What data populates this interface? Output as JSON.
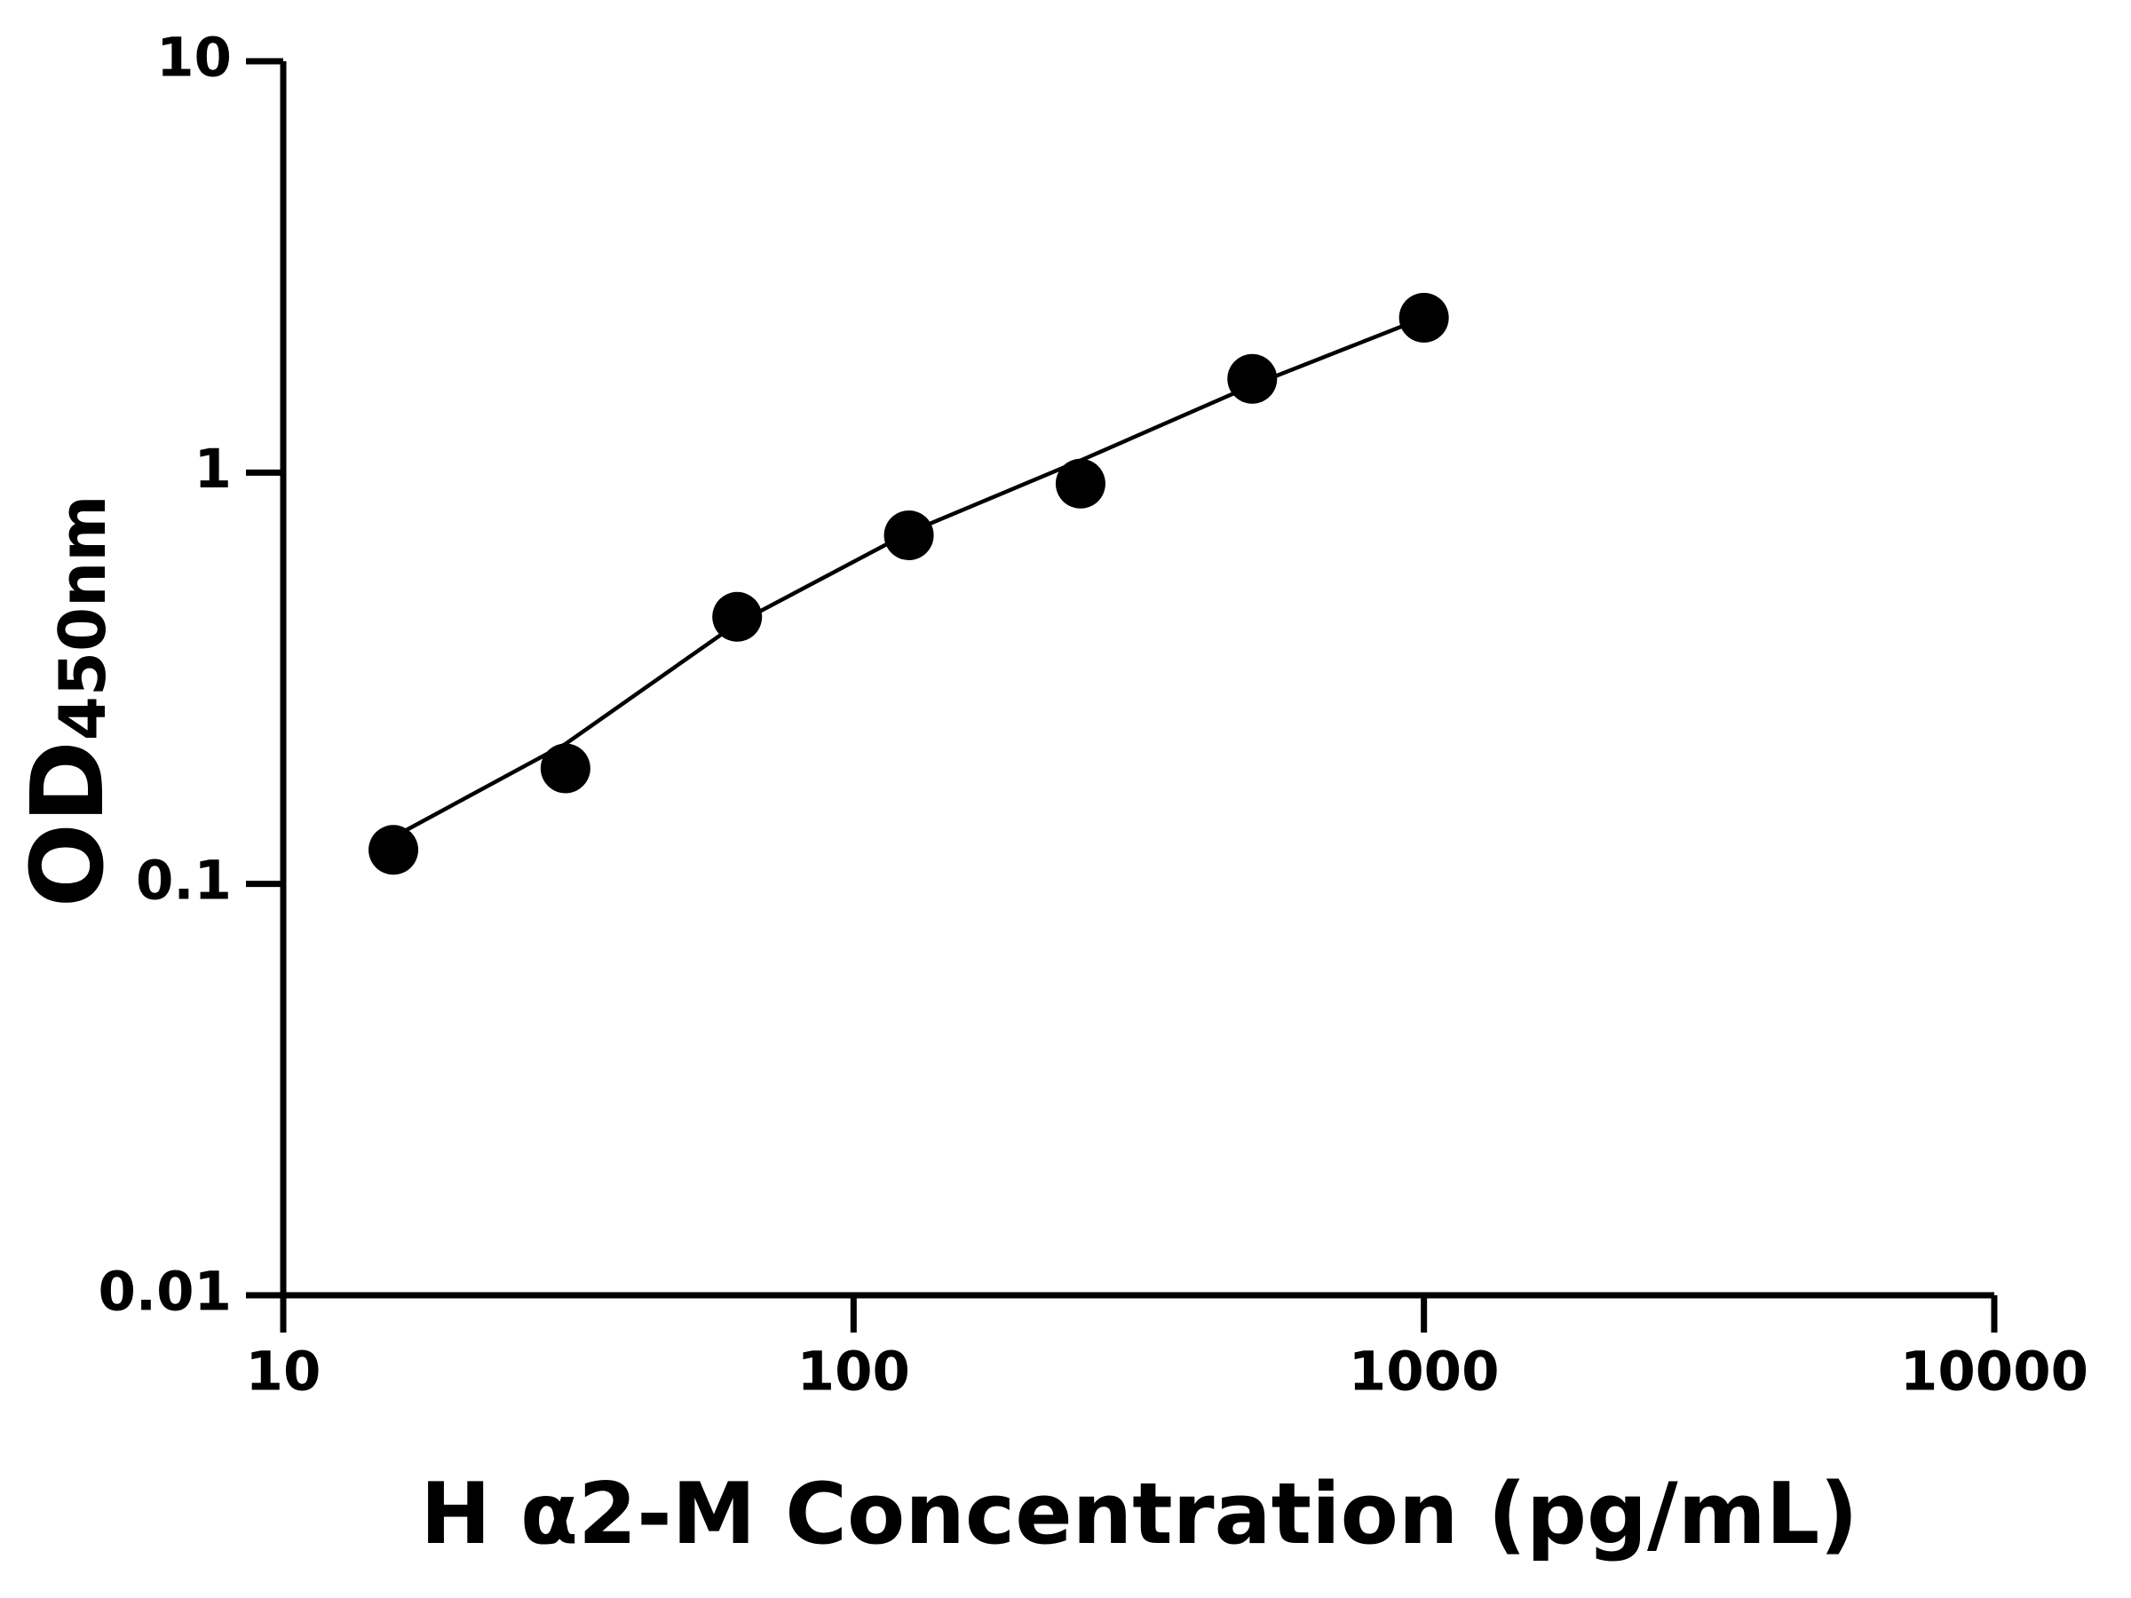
{
  "chart_data": {
    "type": "scatter",
    "xlabel": "H α2-M Concentration (pg/mL)",
    "ylabel": "OD",
    "ylabel_subscript": "450nm",
    "xscale": "log",
    "yscale": "log",
    "xlim": [
      10,
      10000
    ],
    "ylim": [
      0.01,
      10
    ],
    "xticks": [
      10,
      100,
      1000,
      10000
    ],
    "yticks": [
      0.01,
      0.1,
      1,
      10
    ],
    "series": [
      {
        "style": "markers",
        "color": "#000000",
        "x": [
          15.6,
          31.25,
          62.5,
          125,
          250,
          500,
          1000
        ],
        "values": [
          0.121,
          0.191,
          0.446,
          0.704,
          0.94,
          1.69,
          2.38
        ]
      },
      {
        "style": "line",
        "color": "#000000",
        "x": [
          15.6,
          31.25,
          62.5,
          125,
          250,
          500,
          1000
        ],
        "values": [
          0.13,
          0.219,
          0.43,
          0.715,
          1.07,
          1.63,
          2.38
        ]
      }
    ]
  }
}
